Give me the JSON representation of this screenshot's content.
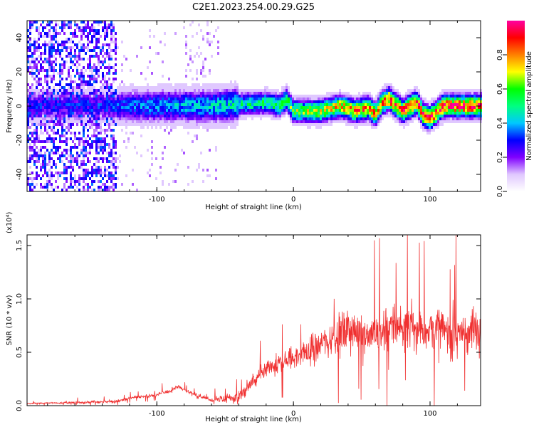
{
  "title": "C2E1.2023.254.00.29.G25",
  "chart_data": [
    {
      "type": "heatmap",
      "xlabel": "Height of straight line (km)",
      "ylabel": "Frequency (Hz)",
      "xlim": [
        -195,
        137
      ],
      "ylim": [
        -50,
        50
      ],
      "x_ticks": [
        -100,
        0,
        100
      ],
      "y_ticks": [
        -40,
        -20,
        0,
        20,
        40
      ],
      "colorbar": {
        "label": "Normalized spectral amplitude",
        "range": [
          0,
          1
        ],
        "ticks": [
          "0.0",
          "0.2",
          "0.4",
          "0.6",
          "0.8"
        ],
        "colormap": [
          "#ffffff",
          "#e0c8ff",
          "#8000ff",
          "#0000ff",
          "#00c8ff",
          "#00ff80",
          "#00ff00",
          "#ffff00",
          "#ff8000",
          "#ff0000",
          "#ff00a0"
        ]
      },
      "ridge_centre_hz": [
        [
          -130,
          0
        ],
        [
          -100,
          0
        ],
        [
          -60,
          0
        ],
        [
          -40,
          1
        ],
        [
          -20,
          2
        ],
        [
          -10,
          0
        ],
        [
          -5,
          4
        ],
        [
          0,
          -3
        ],
        [
          20,
          -3
        ],
        [
          35,
          0
        ],
        [
          45,
          -3
        ],
        [
          55,
          -1
        ],
        [
          60,
          -5
        ],
        [
          65,
          2
        ],
        [
          70,
          4
        ],
        [
          80,
          -3
        ],
        [
          90,
          2
        ],
        [
          95,
          -5
        ],
        [
          100,
          -7
        ],
        [
          110,
          0
        ],
        [
          137,
          0
        ]
      ],
      "ridge_peak_amplitude": [
        [
          -195,
          0.3
        ],
        [
          -130,
          0.35
        ],
        [
          -60,
          0.45
        ],
        [
          -20,
          0.55
        ],
        [
          0,
          0.65
        ],
        [
          50,
          0.85
        ],
        [
          100,
          0.95
        ],
        [
          137,
          0.95
        ]
      ]
    },
    {
      "type": "line",
      "xlabel": "Height of straight line (km)",
      "ylabel": "SNR (10 * v/v)",
      "y_multiplier": "(x10⁴)",
      "xlim": [
        -195,
        137
      ],
      "ylim": [
        0,
        1.6
      ],
      "x_ticks": [
        -100,
        0,
        100
      ],
      "y_ticks": [
        "0.0",
        "0.5",
        "1.0",
        "1.5"
      ],
      "color": "#f03030",
      "series": [
        {
          "envelope_mean": [
            [
              -195,
              0.02
            ],
            [
              -150,
              0.03
            ],
            [
              -130,
              0.04
            ],
            [
              -115,
              0.08
            ],
            [
              -100,
              0.1
            ],
            [
              -90,
              0.14
            ],
            [
              -85,
              0.18
            ],
            [
              -75,
              0.12
            ],
            [
              -60,
              0.05
            ],
            [
              -40,
              0.08
            ],
            [
              -30,
              0.22
            ],
            [
              -20,
              0.32
            ],
            [
              -10,
              0.4
            ],
            [
              0,
              0.45
            ],
            [
              10,
              0.5
            ],
            [
              20,
              0.58
            ],
            [
              30,
              0.65
            ],
            [
              40,
              0.7
            ],
            [
              60,
              0.68
            ],
            [
              75,
              0.75
            ],
            [
              90,
              0.72
            ],
            [
              100,
              0.72
            ],
            [
              115,
              0.68
            ],
            [
              137,
              0.7
            ]
          ],
          "noise_amplitude": [
            [
              -195,
              0.01
            ],
            [
              -100,
              0.03
            ],
            [
              -60,
              0.03
            ],
            [
              -40,
              0.1
            ],
            [
              -20,
              0.15
            ],
            [
              0,
              0.2
            ],
            [
              30,
              0.3
            ],
            [
              60,
              0.35
            ],
            [
              90,
              0.4
            ],
            [
              137,
              0.35
            ]
          ],
          "peak_max": 1.6
        }
      ]
    }
  ]
}
